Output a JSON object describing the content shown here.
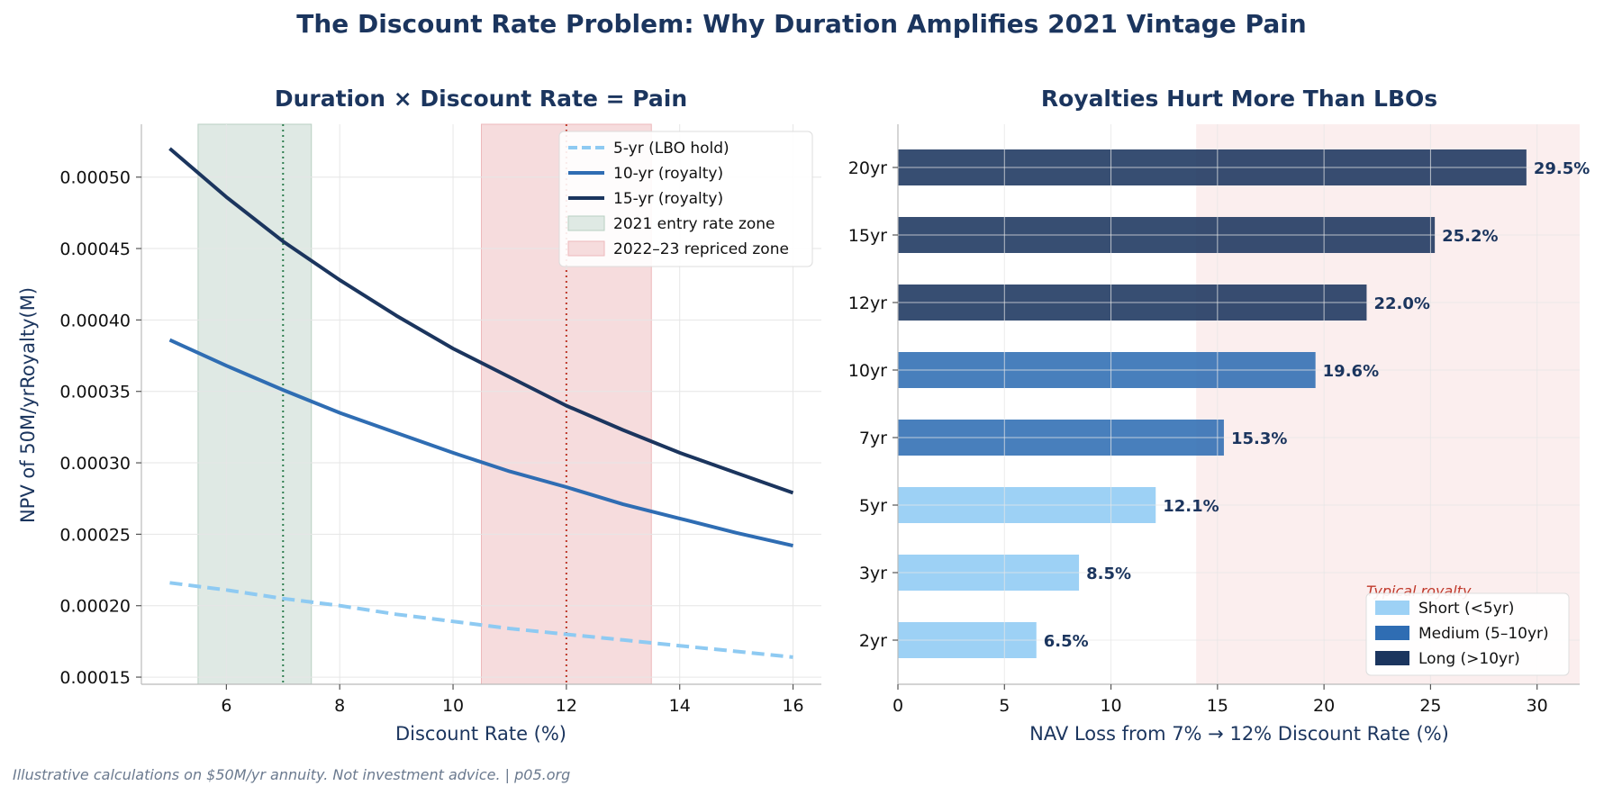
{
  "figure": {
    "title": "The Discount Rate Problem: Why Duration Amplifies 2021 Vintage Pain",
    "footer": "Illustrative calculations on $50M/yr annuity. Not investment advice. | p05.org"
  },
  "chart_data": [
    {
      "type": "line",
      "title": "Duration × Discount Rate = Pain",
      "xlabel": "Discount Rate (%)",
      "ylabel": "NPV of 50M/yrRoyalty(M)",
      "xlim": [
        4.5,
        16.5
      ],
      "ylim": [
        0.000145,
        0.000537
      ],
      "xticks": [
        6,
        8,
        10,
        12,
        14,
        16
      ],
      "xtick_labels": [
        "6",
        "8",
        "10",
        "12",
        "14",
        "16"
      ],
      "yticks": [
        0.00015,
        0.0002,
        0.00025,
        0.0003,
        0.00035,
        0.0004,
        0.00045,
        0.0005
      ],
      "ytick_labels": [
        "0.00015",
        "0.00020",
        "0.00025",
        "0.00030",
        "0.00035",
        "0.00040",
        "0.00045",
        "0.00050"
      ],
      "grid": true,
      "legend_position": "top-right",
      "x": [
        5,
        6,
        7,
        8,
        9,
        10,
        11,
        12,
        13,
        14,
        15,
        16
      ],
      "series": [
        {
          "name": "5-yr (LBO hold)",
          "color": "#8ecaf2",
          "dashed": true,
          "values": [
            0.000216,
            0.000211,
            0.000205,
            0.0002,
            0.000194,
            0.000189,
            0.000184,
            0.00018,
            0.000176,
            0.000172,
            0.000168,
            0.000164
          ]
        },
        {
          "name": "10-yr (royalty)",
          "color": "#2f6db3",
          "dashed": false,
          "values": [
            0.000386,
            0.000368,
            0.000351,
            0.000335,
            0.000321,
            0.000307,
            0.000294,
            0.000283,
            0.000271,
            0.000261,
            0.000251,
            0.000242
          ]
        },
        {
          "name": "15-yr (royalty)",
          "color": "#1b355e",
          "dashed": false,
          "values": [
            0.00052,
            0.000486,
            0.000455,
            0.000428,
            0.000403,
            0.00038,
            0.00036,
            0.00034,
            0.000323,
            0.000307,
            0.000293,
            0.000279
          ]
        }
      ],
      "zones": [
        {
          "name": "2021 entry rate zone",
          "range": [
            5.5,
            7.5
          ],
          "fill": "#dfe9e4",
          "edge": "#b8cfc2",
          "marker": 7,
          "marker_color": "#2e7d4f"
        },
        {
          "name": "2022–23 repriced zone",
          "range": [
            10.5,
            13.5
          ],
          "fill": "#f6dcdd",
          "edge": "#edb9bb",
          "marker": 12,
          "marker_color": "#c0392b"
        }
      ]
    },
    {
      "type": "bar",
      "orientation": "horizontal",
      "title": "Royalties Hurt More Than LBOs",
      "xlabel": "NAV Loss from 7% → 12% Discount Rate (%)",
      "ylabel": "",
      "xlim": [
        0,
        32
      ],
      "xticks": [
        0,
        5,
        10,
        15,
        20,
        25,
        30
      ],
      "xtick_labels": [
        "0",
        "5",
        "10",
        "15",
        "20",
        "25",
        "30"
      ],
      "grid": true,
      "categories": [
        "2yr",
        "3yr",
        "5yr",
        "7yr",
        "10yr",
        "12yr",
        "15yr",
        "20yr"
      ],
      "values": [
        6.5,
        8.5,
        12.1,
        15.3,
        19.6,
        22.0,
        25.2,
        29.5
      ],
      "value_labels": [
        "6.5%",
        "8.5%",
        "12.1%",
        "15.3%",
        "19.6%",
        "22.0%",
        "25.2%",
        "29.5%"
      ],
      "groups": [
        "Short (<5yr)",
        "Short (<5yr)",
        "Short (<5yr)",
        "Medium (5–10yr)",
        "Medium (5–10yr)",
        "Long (>10yr)",
        "Long (>10yr)",
        "Long (>10yr)"
      ],
      "legend": [
        {
          "name": "Short (<5yr)",
          "color": "#9dd1f5"
        },
        {
          "name": "Medium (5–10yr)",
          "color": "#2f6db3"
        },
        {
          "name": "Long (>10yr)",
          "color": "#1b355e"
        }
      ],
      "legend_position": "lower-right",
      "shaded_region": {
        "range": [
          14,
          32
        ],
        "fill": "#fbeeee"
      },
      "annotation": "Typical royalty"
    }
  ]
}
